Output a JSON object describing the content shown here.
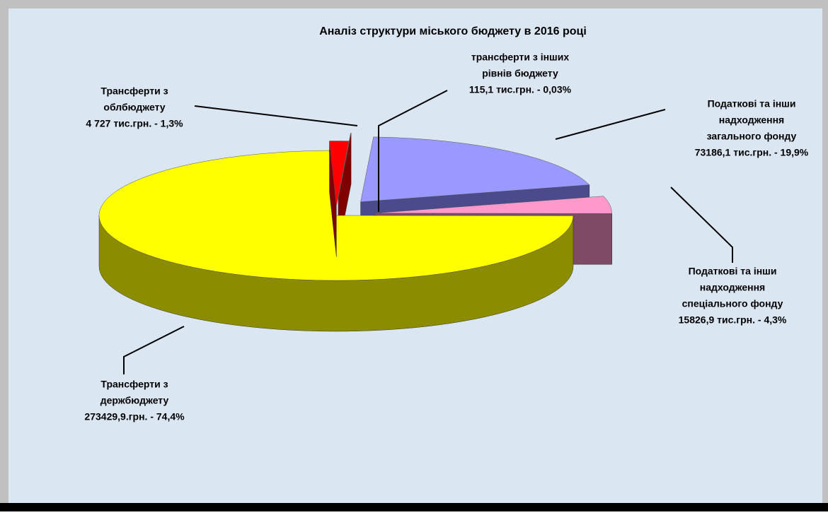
{
  "chart_data": {
    "type": "pie3d",
    "title": "Аналіз структури міського бюджету в 2016 році",
    "categories": [
      [
        "трансферти з інших",
        "рівнів бюджету"
      ],
      [
        "Податкові та інши",
        "надходження",
        "загального фонду"
      ],
      [
        "Податкові та інши",
        "надходження",
        "спеціального фонду"
      ],
      [
        "Трансферти з",
        "держбюджету"
      ],
      [
        "Трансферти з",
        "облбюджету"
      ]
    ],
    "values": [
      0.03,
      19.9,
      4.3,
      74.4,
      1.3
    ],
    "value_labels": [
      "115,1 тис.грн. - 0,03%",
      "73186,1 тис.грн. - 19,9%",
      "15826,9 тис.грн.  - 4,3%",
      "273429,9.грн. - 74,4%",
      "4 727 тис.грн. - 1,3%"
    ],
    "colors": [
      "#ff3333",
      "#9999ff",
      "#ff99cc",
      "#ffff00",
      "#ff0000"
    ],
    "side_colors": [
      "#800000",
      "#4b4b8c",
      "#7f4a66",
      "#8c8c00",
      "#800000"
    ]
  }
}
